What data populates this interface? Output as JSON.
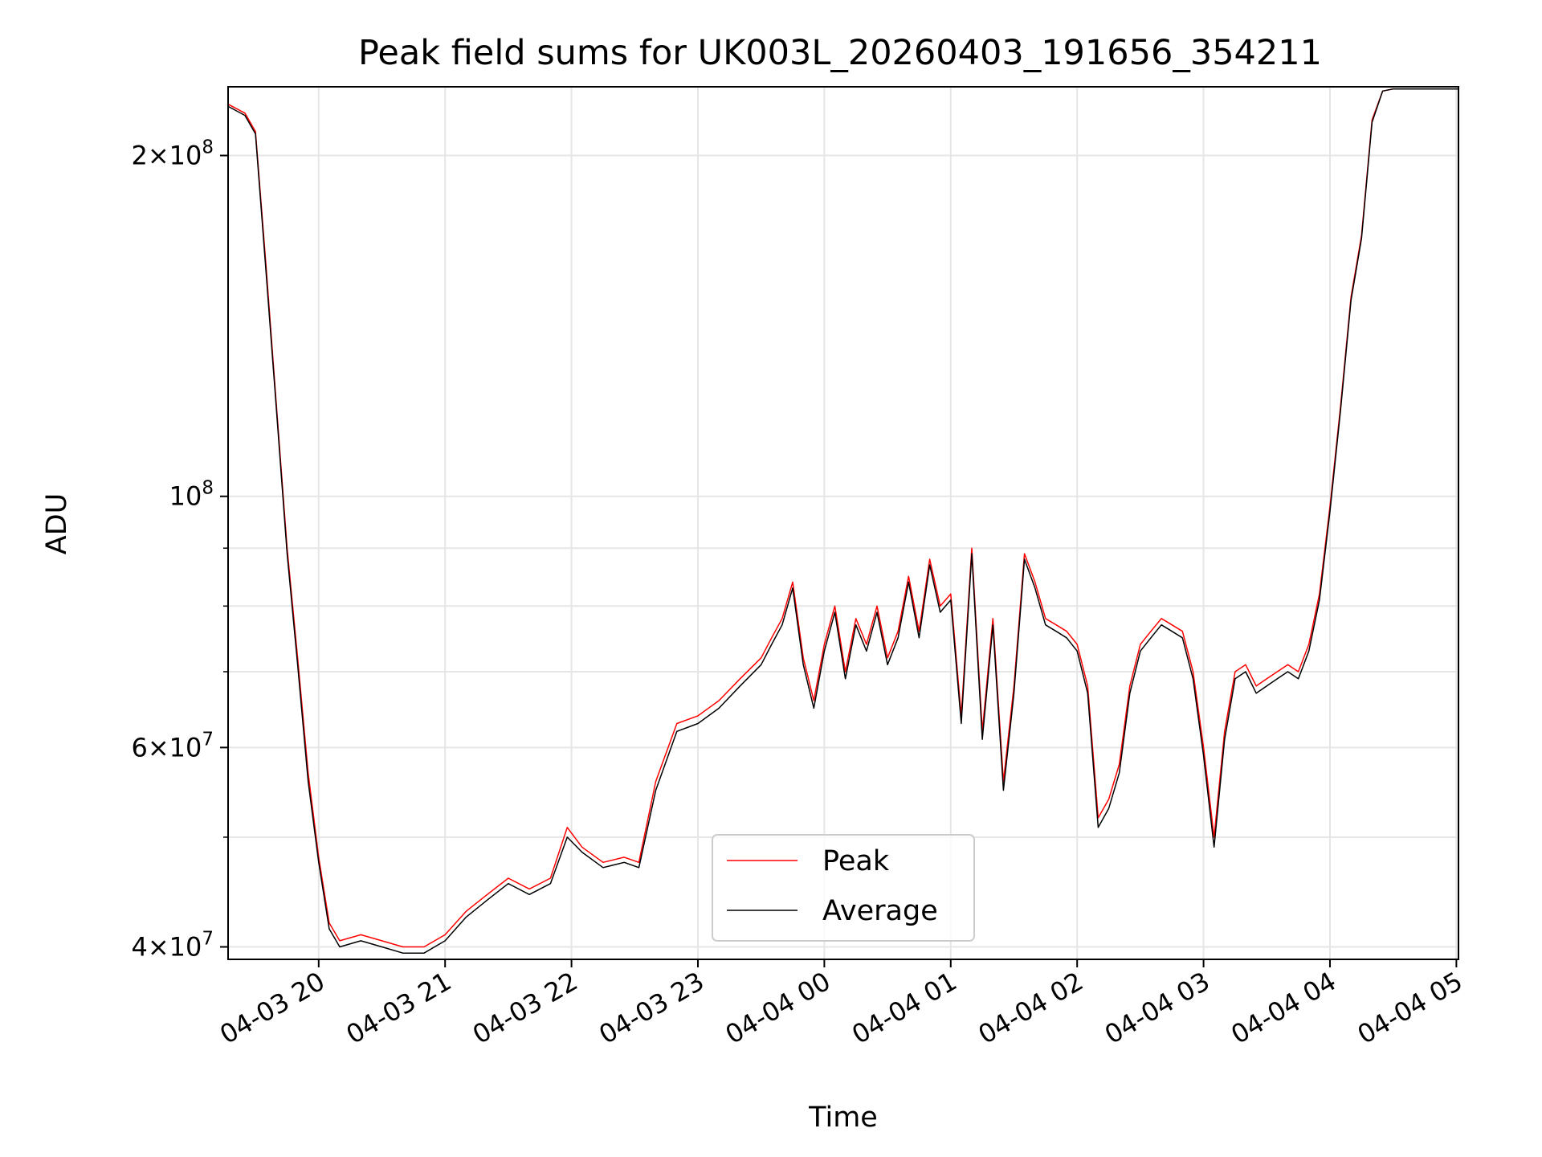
{
  "chart_data": {
    "type": "line",
    "title": "Peak field sums for UK003L_20260403_191656_354211",
    "xlabel": "Time",
    "ylabel": "ADU",
    "yscale": "log",
    "ylim": [
      39000000,
      230000000
    ],
    "xlim": [
      "04-03 19:17",
      "04-04 05:01"
    ],
    "grid": true,
    "legend_position": "lower center",
    "x_tick_labels": [
      "04-03 20",
      "04-03 21",
      "04-03 22",
      "04-03 23",
      "04-04 00",
      "04-04 01",
      "04-04 02",
      "04-04 03",
      "04-04 04",
      "04-04 05"
    ],
    "y_tick_labels": [
      {
        "value": 40000000,
        "mantissa": "4",
        "exponent": "7"
      },
      {
        "value": 60000000,
        "mantissa": "6",
        "exponent": "7"
      },
      {
        "value": 100000000,
        "mantissa": "",
        "exponent": "8"
      },
      {
        "value": 200000000,
        "mantissa": "2",
        "exponent": "8"
      }
    ],
    "x": [
      "04-03 19:17",
      "04-03 19:25",
      "04-03 19:30",
      "04-03 19:35",
      "04-03 19:40",
      "04-03 19:45",
      "04-03 19:50",
      "04-03 19:55",
      "04-03 20:00",
      "04-03 20:05",
      "04-03 20:10",
      "04-03 20:20",
      "04-03 20:30",
      "04-03 20:40",
      "04-03 20:50",
      "04-03 21:00",
      "04-03 21:10",
      "04-03 21:20",
      "04-03 21:30",
      "04-03 21:40",
      "04-03 21:50",
      "04-03 21:58",
      "04-03 22:05",
      "04-03 22:15",
      "04-03 22:25",
      "04-03 22:32",
      "04-03 22:40",
      "04-03 22:50",
      "04-03 23:00",
      "04-03 23:10",
      "04-03 23:20",
      "04-03 23:30",
      "04-03 23:35",
      "04-03 23:40",
      "04-03 23:45",
      "04-03 23:50",
      "04-03 23:55",
      "04-04 00:00",
      "04-04 00:05",
      "04-04 00:10",
      "04-04 00:15",
      "04-04 00:20",
      "04-04 00:25",
      "04-04 00:30",
      "04-04 00:35",
      "04-04 00:40",
      "04-04 00:45",
      "04-04 00:50",
      "04-04 00:55",
      "04-04 01:00",
      "04-04 01:05",
      "04-04 01:10",
      "04-04 01:15",
      "04-04 01:20",
      "04-04 01:25",
      "04-04 01:30",
      "04-04 01:35",
      "04-04 01:40",
      "04-04 01:45",
      "04-04 01:50",
      "04-04 01:55",
      "04-04 02:00",
      "04-04 02:05",
      "04-04 02:10",
      "04-04 02:15",
      "04-04 02:20",
      "04-04 02:25",
      "04-04 02:30",
      "04-04 02:35",
      "04-04 02:40",
      "04-04 02:45",
      "04-04 02:50",
      "04-04 02:55",
      "04-04 03:00",
      "04-04 03:05",
      "04-04 03:10",
      "04-04 03:15",
      "04-04 03:20",
      "04-04 03:25",
      "04-04 03:30",
      "04-04 03:35",
      "04-04 03:40",
      "04-04 03:45",
      "04-04 03:50",
      "04-04 03:55",
      "04-04 04:00",
      "04-04 04:05",
      "04-04 04:10",
      "04-04 04:15",
      "04-04 04:20",
      "04-04 04:25",
      "04-04 04:30",
      "04-04 04:35",
      "04-04 04:40",
      "04-04 04:45",
      "04-04 04:50",
      "04-04 04:55",
      "04-04 05:01"
    ],
    "series": [
      {
        "name": "Peak",
        "color": "#ff0000",
        "values": [
          222000000,
          218000000,
          210000000,
          160000000,
          120000000,
          90000000,
          72000000,
          57000000,
          48000000,
          42000000,
          40500000,
          41000000,
          40500000,
          40000000,
          40000000,
          41000000,
          43000000,
          44500000,
          46000000,
          45000000,
          46000000,
          51000000,
          49000000,
          47500000,
          48000000,
          47500000,
          56000000,
          63000000,
          64000000,
          66000000,
          69000000,
          72000000,
          75000000,
          78000000,
          84000000,
          72000000,
          66000000,
          74000000,
          80000000,
          70000000,
          78000000,
          74000000,
          80000000,
          72000000,
          76000000,
          85000000,
          76000000,
          88000000,
          80000000,
          82000000,
          64000000,
          90000000,
          62000000,
          78000000,
          56000000,
          68000000,
          89000000,
          84000000,
          78000000,
          77000000,
          76000000,
          74000000,
          68000000,
          52000000,
          54000000,
          58000000,
          68000000,
          74000000,
          76000000,
          78000000,
          77000000,
          76000000,
          70000000,
          60000000,
          50000000,
          62000000,
          70000000,
          71000000,
          68000000,
          69000000,
          70000000,
          71000000,
          70000000,
          74000000,
          82000000,
          98000000,
          120000000,
          150000000,
          170000000,
          215000000,
          228000000,
          229000000,
          229000000,
          229000000,
          229000000,
          229000000,
          229000000,
          229000000
        ]
      },
      {
        "name": "Average",
        "color": "#000000",
        "values": [
          221000000,
          217000000,
          209000000,
          158000000,
          119000000,
          89000000,
          71000000,
          56000000,
          47500000,
          41500000,
          40000000,
          40500000,
          40000000,
          39500000,
          39500000,
          40500000,
          42500000,
          44000000,
          45500000,
          44500000,
          45500000,
          50000000,
          48500000,
          47000000,
          47500000,
          47000000,
          55000000,
          62000000,
          63000000,
          65000000,
          68000000,
          71000000,
          74000000,
          77000000,
          83000000,
          71000000,
          65000000,
          73000000,
          79000000,
          69000000,
          77000000,
          73000000,
          79000000,
          71000000,
          75000000,
          84000000,
          75000000,
          87000000,
          79000000,
          81000000,
          63000000,
          89000000,
          61000000,
          77000000,
          55000000,
          67000000,
          88000000,
          83000000,
          77000000,
          76000000,
          75000000,
          73000000,
          67000000,
          51000000,
          53000000,
          57000000,
          67000000,
          73000000,
          75000000,
          77000000,
          76000000,
          75000000,
          69000000,
          59000000,
          49000000,
          61000000,
          69000000,
          70000000,
          67000000,
          68000000,
          69000000,
          70000000,
          69000000,
          73000000,
          81000000,
          97000000,
          119000000,
          149000000,
          169000000,
          214000000,
          228000000,
          229000000,
          229000000,
          229000000,
          229000000,
          229000000,
          229000000,
          229000000
        ]
      }
    ]
  }
}
